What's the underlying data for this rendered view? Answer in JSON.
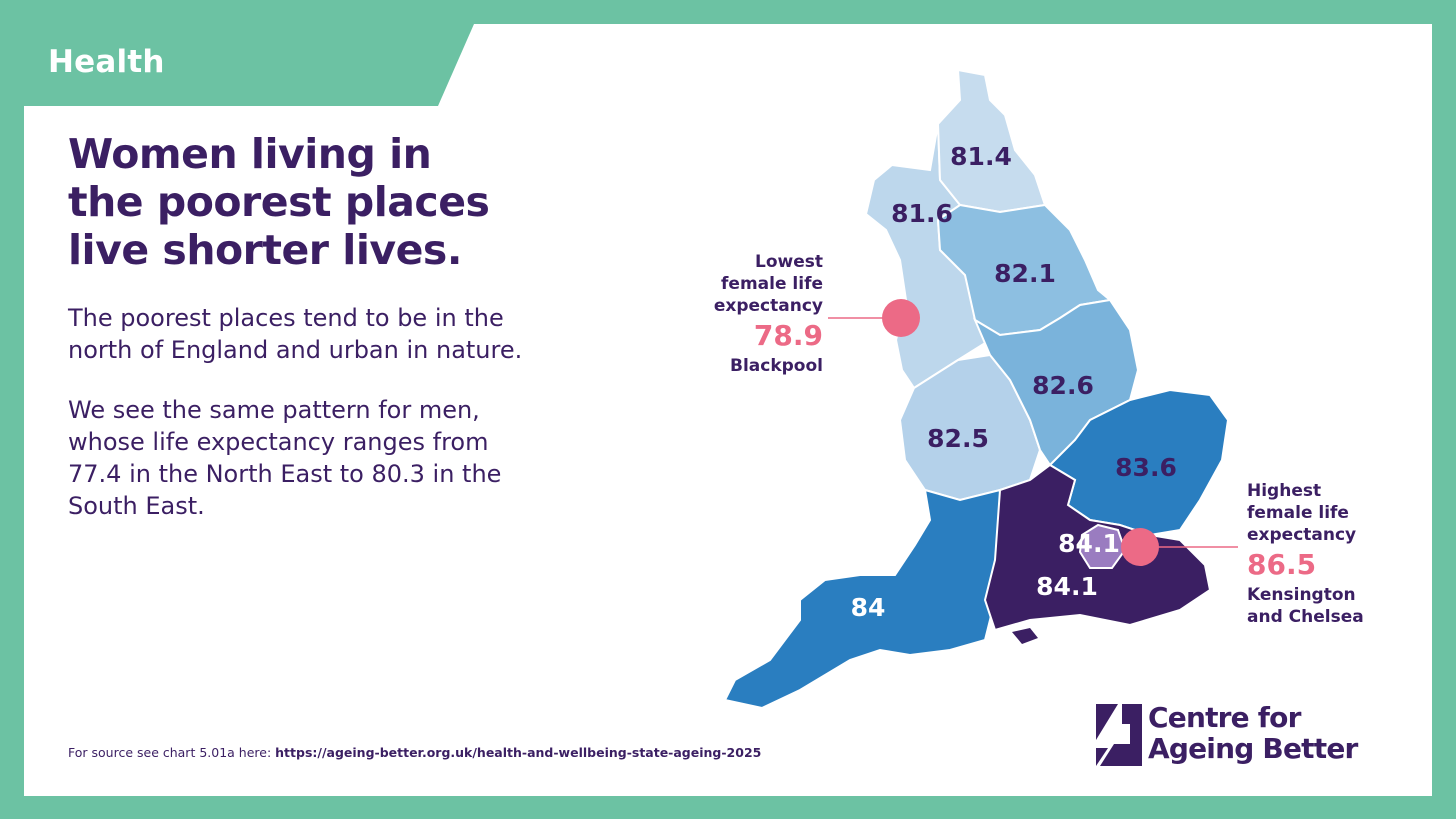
{
  "header": {
    "tab_label": "Health"
  },
  "headline": {
    "line1": "Women living in",
    "line2": "the poorest places",
    "line3": "live shorter lives."
  },
  "paragraphs": {
    "p1_line1": "The poorest places tend to be in the",
    "p1_line2": "north of England and urban in nature.",
    "p2_line1": "We see the same pattern for men,",
    "p2_line2": "whose life expectancy ranges from",
    "p2_line3": "77.4 in the North East to 80.3 in the",
    "p2_line4": "South East."
  },
  "source": {
    "prefix": "For source see chart 5.01a here: ",
    "url": "https://ageing-better.org.uk/health-and-wellbeing-state-ageing-2025"
  },
  "map_data": {
    "metric": "female life expectancy",
    "regions": [
      {
        "value": "81.4",
        "fill": "#bdd7ec"
      },
      {
        "value": "81.6",
        "fill": "#bdd7ec"
      },
      {
        "value": "82.1",
        "fill": "#8dbfe1"
      },
      {
        "value": "82.5",
        "fill": "#b4d1ea"
      },
      {
        "value": "82.6",
        "fill": "#7ab3db"
      },
      {
        "value": "83.6",
        "fill": "#2a7ec0"
      },
      {
        "value": "84.1",
        "fill": "#9a7cc0"
      },
      {
        "value": "84.1",
        "fill": "#3b1f63"
      },
      {
        "value": "84",
        "fill": "#2a7ec0"
      }
    ]
  },
  "callouts": {
    "lowest": {
      "label_line1": "Lowest",
      "label_line2": "female life",
      "label_line3": "expectancy",
      "value": "78.9",
      "place": "Blackpool"
    },
    "highest": {
      "label_line1": "Highest",
      "label_line2": "female life",
      "label_line3": "expectancy",
      "value": "86.5",
      "place_line1": "Kensington",
      "place_line2": "and Chelsea"
    }
  },
  "logo": {
    "line1": "Centre for",
    "line2": "Ageing Better"
  },
  "colors": {
    "frame": "#6cc2a3",
    "text": "#3b1f63",
    "highlight": "#ec6a86",
    "region_light": "#bdd7ec",
    "region_mid": "#7ab3db",
    "region_dark_blue": "#2a7ec0",
    "region_purple": "#3b1f63"
  }
}
